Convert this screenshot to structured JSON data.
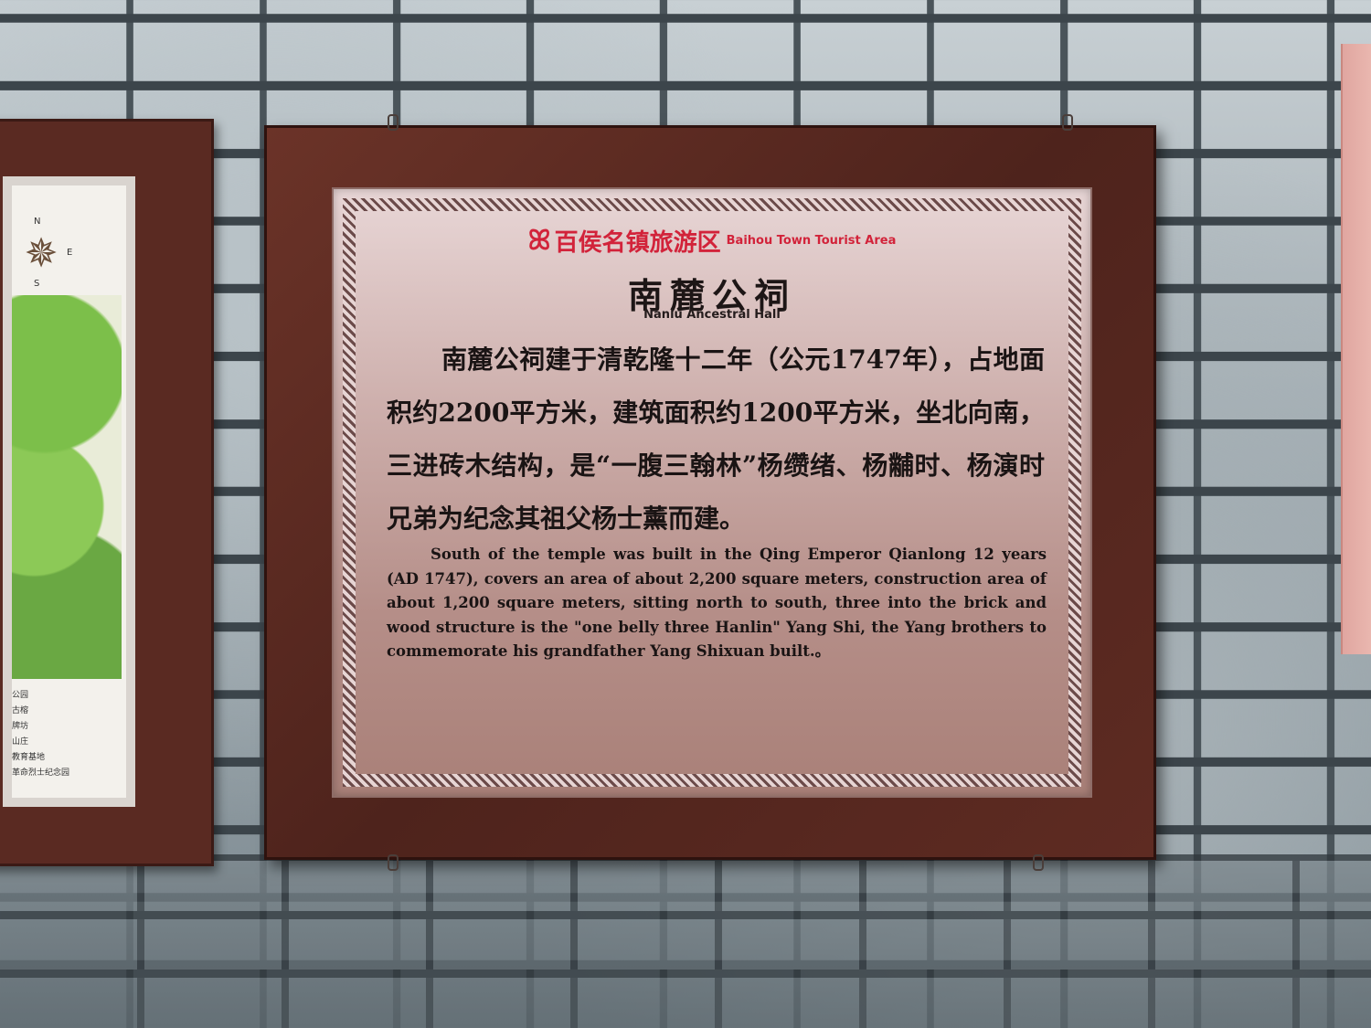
{
  "plaque": {
    "logo_cn": "百侯名镇旅游区",
    "logo_en": "Baihou Town Tourist Area",
    "title_cn": "南麓公祠",
    "title_en": "Nanlu Ancestral Hall",
    "body_cn": "南麓公祠建于清乾隆十二年（公元1747年），占地面积约2200平方米，建筑面积约1200平方米，坐北向南，三进砖木结构，是“一腹三翰林”杨缵绪、杨黼时、杨演时兄弟为纪念其祖父杨士薰而建。",
    "body_en": "South of the temple was built in the Qing Emperor Qianlong 12 years (AD 1747), covers an area of about 2,200 square meters, construction area of about 1,200 square meters, sitting north to south, three into the brick and wood structure is the \"one belly three Hanlin\" Yang Shi, the Yang brothers to commemorate his grandfather Yang Shixuan built.。"
  },
  "left_board": {
    "legend": [
      "公园",
      "古榕",
      "牌坊",
      "山庄",
      "教育基地",
      "革命烈士纪念园"
    ],
    "compass": [
      "N",
      "S",
      "E"
    ]
  },
  "colors": {
    "frame": "#5a2a22",
    "plaque": "#c7a7a3",
    "logo_red": "#d2233a"
  }
}
